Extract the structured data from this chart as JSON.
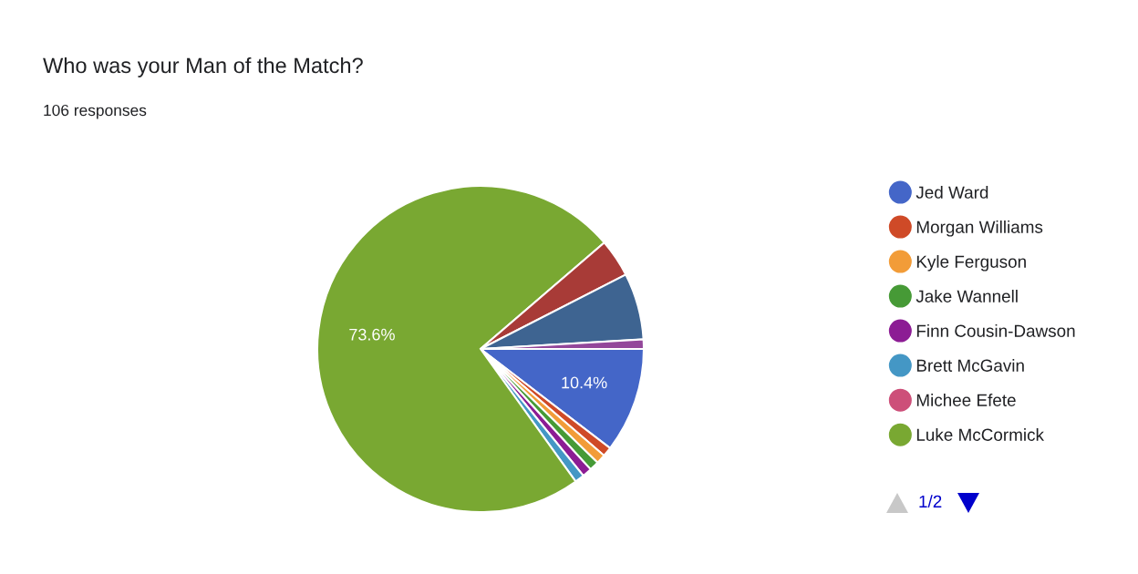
{
  "chart_data": {
    "type": "pie",
    "title": "Who was your Man of the Match?",
    "subtitle": "106 responses",
    "categories": [
      "Jed Ward",
      "Morgan Williams",
      "Kyle Ferguson",
      "Jake Wannell",
      "Finn Cousin-Dawson",
      "Brett McGavin",
      "Michee Efete",
      "Luke McCormick",
      null,
      null,
      null
    ],
    "values": [
      10.4,
      0.94,
      0.94,
      0.94,
      0.94,
      0.94,
      0,
      73.6,
      3.77,
      6.59,
      0.94
    ],
    "colors": [
      "#4466c8",
      "#cf4a27",
      "#f29c38",
      "#469a36",
      "#8c1c94",
      "#4497c5",
      "#cd4f79",
      "#79a832",
      "#a83b37",
      "#3e6491",
      "#93479a"
    ],
    "value_labels": [
      "10.4%",
      null,
      null,
      null,
      null,
      null,
      null,
      "73.6%",
      null,
      null,
      null
    ],
    "legend": "right",
    "annotations": [
      "1/2"
    ]
  }
}
